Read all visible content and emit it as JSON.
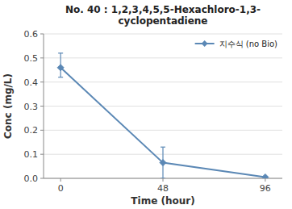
{
  "chart_data": {
    "type": "line",
    "title": "No. 40 : 1,2,3,4,5,5-Hexachloro-1,3-\ncyclopentadiene",
    "x_label": "Time (hour)",
    "y_label": "Conc (mg/L)",
    "x": [
      0,
      48,
      96
    ],
    "series": [
      {
        "name": "지수식 (no Bio)",
        "color": "#5b88b5",
        "marker": "diamond",
        "values": [
          0.46,
          0.065,
          0.005
        ],
        "error_lower": [
          0.04,
          0.065,
          0.003
        ],
        "error_upper": [
          0.06,
          0.065,
          0.003
        ]
      }
    ],
    "xlim": [
      -8,
      104
    ],
    "xticks": [
      0,
      48,
      96
    ],
    "ylim": [
      0,
      0.6
    ],
    "yticks": [
      {
        "value": 0,
        "label": "0.0"
      },
      0.1,
      0.2,
      0.3,
      0.4,
      0.5,
      0.6
    ],
    "grid": "y",
    "legend": "upper right"
  }
}
